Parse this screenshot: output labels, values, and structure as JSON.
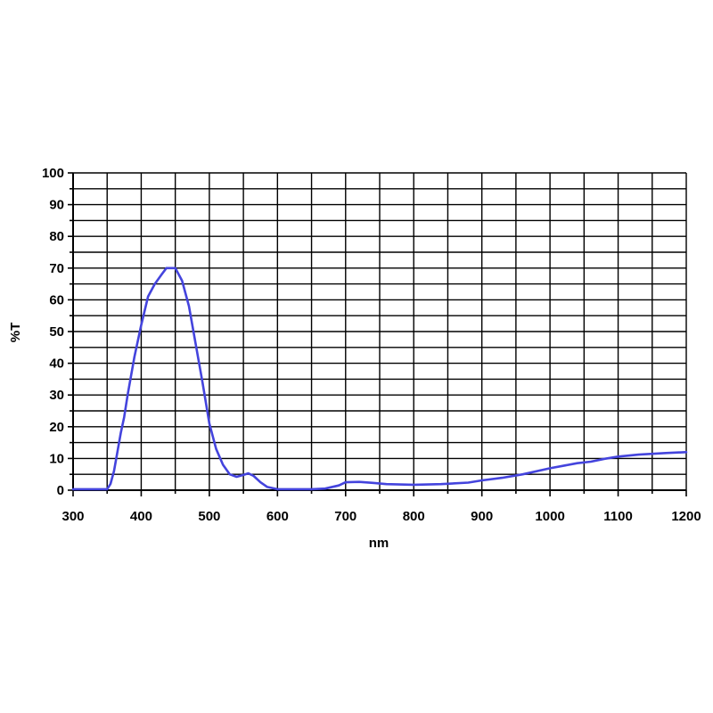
{
  "chart_data": {
    "type": "line",
    "title": "",
    "xlabel": "nm",
    "ylabel": "%T",
    "xlim": [
      300,
      1200
    ],
    "ylim": [
      0,
      100
    ],
    "x_ticks": [
      300,
      400,
      500,
      600,
      700,
      800,
      900,
      1000,
      1100,
      1200
    ],
    "y_ticks": [
      0,
      10,
      20,
      30,
      40,
      50,
      60,
      70,
      80,
      90,
      100
    ],
    "x_grid_step": 50,
    "y_grid_step": 5,
    "grid": true,
    "legend": "none",
    "series": [
      {
        "color": "#4444dd",
        "points": [
          [
            300,
            0.3
          ],
          [
            350,
            0.3
          ],
          [
            355,
            2
          ],
          [
            360,
            6
          ],
          [
            365,
            12
          ],
          [
            370,
            18
          ],
          [
            375,
            23
          ],
          [
            380,
            30
          ],
          [
            390,
            42
          ],
          [
            400,
            52
          ],
          [
            410,
            61
          ],
          [
            420,
            65
          ],
          [
            430,
            68
          ],
          [
            437,
            70
          ],
          [
            450,
            70
          ],
          [
            460,
            66
          ],
          [
            470,
            58
          ],
          [
            480,
            46
          ],
          [
            490,
            34
          ],
          [
            500,
            21
          ],
          [
            510,
            13
          ],
          [
            520,
            8
          ],
          [
            530,
            5
          ],
          [
            540,
            4.2
          ],
          [
            550,
            4.8
          ],
          [
            557,
            5.3
          ],
          [
            565,
            4.5
          ],
          [
            575,
            2.5
          ],
          [
            585,
            1
          ],
          [
            600,
            0.3
          ],
          [
            650,
            0.3
          ],
          [
            670,
            0.5
          ],
          [
            690,
            1.5
          ],
          [
            700,
            2.5
          ],
          [
            720,
            2.6
          ],
          [
            740,
            2.3
          ],
          [
            760,
            1.9
          ],
          [
            800,
            1.7
          ],
          [
            840,
            1.9
          ],
          [
            880,
            2.4
          ],
          [
            900,
            3.1
          ],
          [
            930,
            3.9
          ],
          [
            960,
            5
          ],
          [
            1000,
            6.9
          ],
          [
            1040,
            8.5
          ],
          [
            1060,
            9
          ],
          [
            1080,
            9.9
          ],
          [
            1100,
            10.6
          ],
          [
            1130,
            11.2
          ],
          [
            1170,
            11.7
          ],
          [
            1200,
            12
          ]
        ]
      }
    ]
  }
}
